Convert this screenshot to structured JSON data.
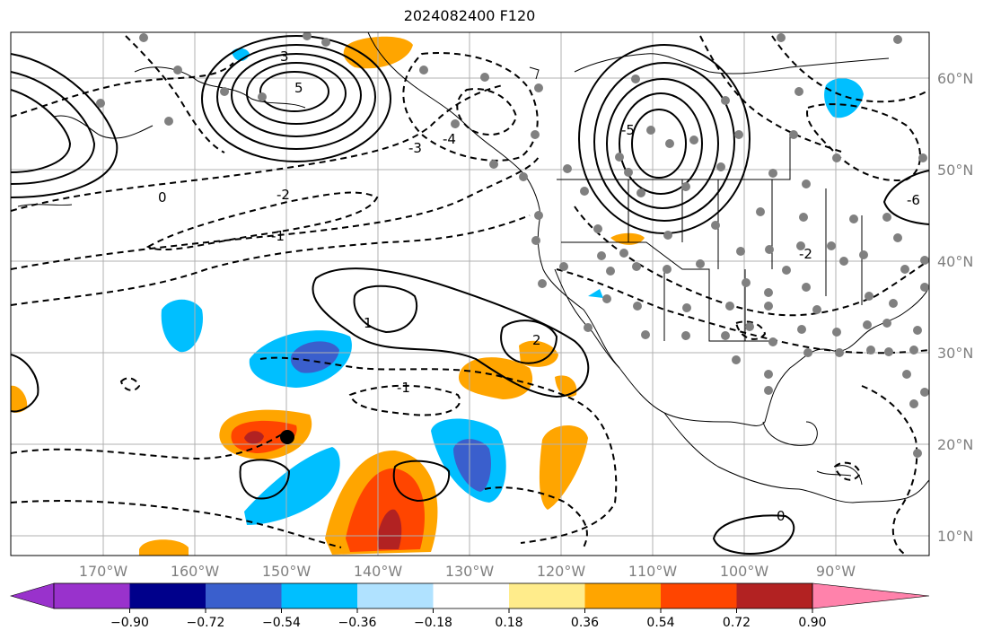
{
  "title": "2024082400 F120",
  "lon_labels": [
    "170°W",
    "160°W",
    "150°W",
    "140°W",
    "130°W",
    "120°W",
    "110°W",
    "100°W",
    "90°W"
  ],
  "lat_labels": [
    "60°N",
    "50°N",
    "40°N",
    "30°N",
    "20°N",
    "10°N"
  ],
  "colorbar": {
    "tick_labels": [
      "−0.90",
      "−0.72",
      "−0.54",
      "−0.36",
      "−0.18",
      "0.18",
      "0.36",
      "0.54",
      "0.72",
      "0.90"
    ],
    "colors": [
      "#9932cc",
      "#00008b",
      "#3a5fcd",
      "#00bfff",
      "#b0e2ff",
      "#ffffff",
      "#ffec8b",
      "#ffa500",
      "#ff4500",
      "#b22222",
      "#ff82ab"
    ]
  },
  "contour_labels": [
    "3",
    "5",
    "-4",
    "0",
    "-2",
    "-1",
    "1",
    "2",
    "-3",
    "-5",
    "-6",
    "-2",
    "-1",
    "0"
  ],
  "colors": {
    "warm": "#ffa500",
    "hot": "#ff4500",
    "dark_red": "#b22222",
    "cool": "#00bfff",
    "blue": "#3a5fcd",
    "station": "#808080",
    "grid": "#b0b0b0"
  }
}
